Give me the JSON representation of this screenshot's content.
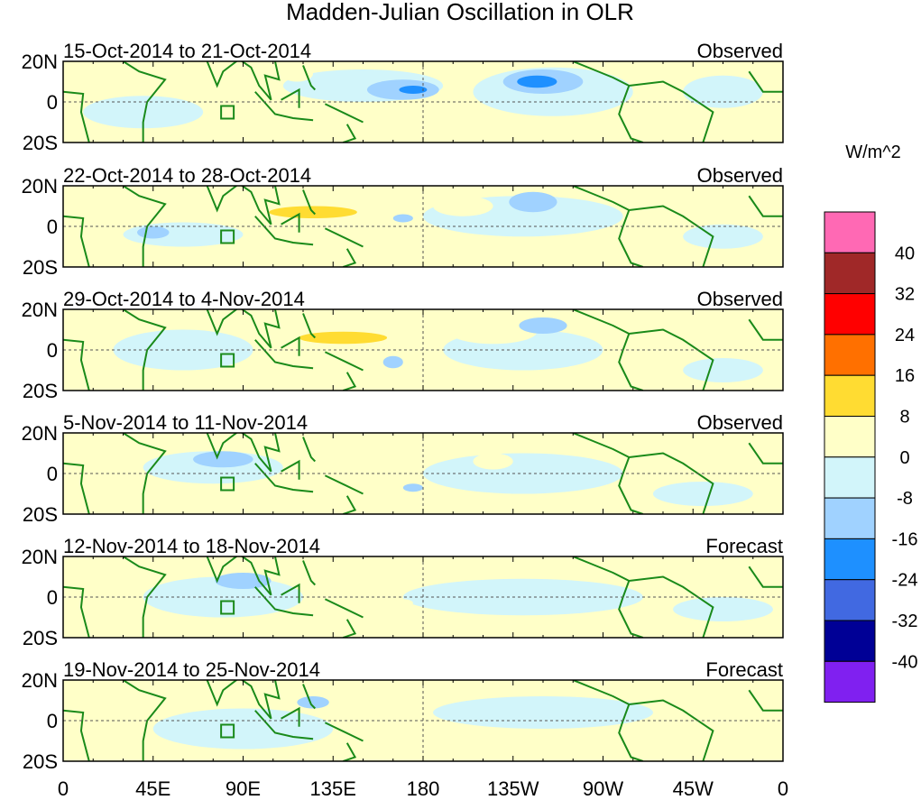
{
  "chart_data": {
    "type": "heatmap",
    "title": "Madden-Julian Oscillation in OLR",
    "units": "W/m^2",
    "x_ticks": [
      "0",
      "45E",
      "90E",
      "135E",
      "180",
      "135W",
      "90W",
      "45W",
      "0"
    ],
    "x_tick_values": [
      0,
      45,
      90,
      135,
      180,
      225,
      270,
      315,
      360
    ],
    "y_ticks": [
      "20N",
      "0",
      "20S"
    ],
    "y_tick_values": [
      20,
      0,
      -20
    ],
    "xlim": [
      0,
      360
    ],
    "ylim": [
      -20,
      20
    ],
    "levels": [
      "40",
      "32",
      "24",
      "16",
      "8",
      "0",
      "-8",
      "-16",
      "-24",
      "-32",
      "-40"
    ],
    "level_values": [
      40,
      32,
      24,
      16,
      8,
      0,
      -8,
      -16,
      -24,
      -32,
      -40
    ],
    "colors": [
      "#ff69b4",
      "#a02828",
      "#ff0000",
      "#ff7000",
      "#ffdc32",
      "#ffffc8",
      "#d2f5fa",
      "#a0d2ff",
      "#1e90ff",
      "#4169e1",
      "#000096",
      "#8020f0"
    ],
    "panels": [
      {
        "period": "15-Oct-2014 to 21-Oct-2014",
        "type": "Observed",
        "anomalies": [
          [
            40,
            -5,
            30,
            8,
            -4
          ],
          [
            150,
            8,
            40,
            8,
            -4
          ],
          [
            245,
            5,
            40,
            12,
            -4
          ],
          [
            330,
            5,
            20,
            8,
            -4
          ],
          [
            117,
            14,
            8,
            4,
            4
          ],
          [
            95,
            6,
            14,
            4,
            4
          ],
          [
            80,
            -8,
            10,
            3,
            4
          ],
          [
            185,
            -7,
            8,
            5,
            4
          ],
          [
            300,
            -10,
            10,
            5,
            4
          ],
          [
            170,
            6,
            18,
            5,
            -12
          ],
          [
            175,
            6,
            7,
            2,
            -20
          ],
          [
            240,
            10,
            20,
            6,
            -12
          ],
          [
            237,
            10,
            10,
            3,
            -20
          ]
        ]
      },
      {
        "period": "22-Oct-2014 to 28-Oct-2014",
        "type": "Observed",
        "anomalies": [
          [
            60,
            -4,
            30,
            6,
            -4
          ],
          [
            230,
            5,
            50,
            10,
            -4
          ],
          [
            330,
            -5,
            20,
            6,
            -4
          ],
          [
            120,
            8,
            40,
            8,
            4
          ],
          [
            200,
            10,
            15,
            5,
            4
          ],
          [
            125,
            7,
            22,
            3,
            12
          ],
          [
            235,
            12,
            12,
            5,
            -12
          ],
          [
            45,
            -3,
            8,
            3,
            -12
          ],
          [
            170,
            4,
            5,
            2,
            -12
          ]
        ]
      },
      {
        "period": "29-Oct-2014 to 4-Nov-2014",
        "type": "Observed",
        "anomalies": [
          [
            60,
            0,
            35,
            10,
            -4
          ],
          [
            230,
            0,
            40,
            10,
            -4
          ],
          [
            330,
            -10,
            20,
            6,
            -4
          ],
          [
            135,
            8,
            35,
            9,
            4
          ],
          [
            215,
            9,
            22,
            6,
            4
          ],
          [
            140,
            6,
            22,
            3,
            12
          ],
          [
            240,
            12,
            12,
            4,
            -12
          ],
          [
            165,
            -6,
            5,
            3,
            -12
          ]
        ]
      },
      {
        "period": "5-Nov-2014 to 11-Nov-2014",
        "type": "Observed",
        "anomalies": [
          [
            75,
            3,
            35,
            8,
            -4
          ],
          [
            230,
            0,
            50,
            10,
            -4
          ],
          [
            320,
            -10,
            25,
            6,
            -4
          ],
          [
            160,
            8,
            22,
            6,
            4
          ],
          [
            215,
            6,
            10,
            4,
            4
          ],
          [
            80,
            7,
            15,
            4,
            -12
          ],
          [
            175,
            -7,
            5,
            2,
            -12
          ]
        ]
      },
      {
        "period": "12-Nov-2014 to 18-Nov-2014",
        "type": "Forecast",
        "anomalies": [
          [
            80,
            0,
            40,
            10,
            -4
          ],
          [
            230,
            0,
            60,
            9,
            -4
          ],
          [
            330,
            -6,
            25,
            6,
            -4
          ],
          [
            90,
            8,
            14,
            4,
            -12
          ],
          [
            163,
            9,
            4,
            2,
            4
          ],
          [
            170,
            -3,
            5,
            2,
            4
          ]
        ]
      },
      {
        "period": "19-Nov-2014 to 25-Nov-2014",
        "type": "Forecast",
        "anomalies": [
          [
            90,
            -4,
            45,
            10,
            -4
          ],
          [
            240,
            4,
            55,
            8,
            -4
          ],
          [
            125,
            9,
            8,
            3,
            -12
          ]
        ]
      }
    ]
  }
}
